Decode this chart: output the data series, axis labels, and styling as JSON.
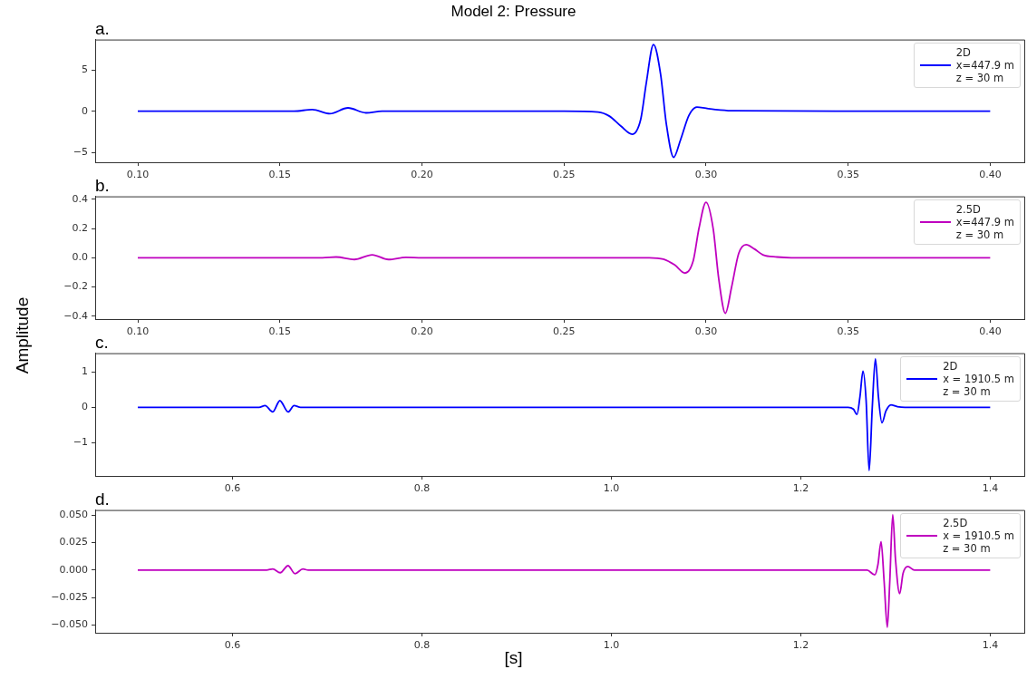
{
  "chart_data": [
    {
      "type": "line",
      "title": "Model 2: Pressure",
      "annotations": [
        "a."
      ],
      "legend": "top right",
      "xlim": [
        0.085,
        0.412
      ],
      "xticks": [
        {
          "value": 0.1,
          "label": "0.10"
        },
        {
          "value": 0.15,
          "label": "0.15"
        },
        {
          "value": 0.2,
          "label": "0.20"
        },
        {
          "value": 0.25,
          "label": "0.25"
        },
        {
          "value": 0.3,
          "label": "0.30"
        },
        {
          "value": 0.35,
          "label": "0.35"
        },
        {
          "value": 0.4,
          "label": "0.40"
        }
      ],
      "ylim": [
        -6.2,
        8.7
      ],
      "yticks": [
        {
          "value": -5,
          "label": "−5"
        },
        0,
        5
      ],
      "series": [
        {
          "name": "2D\nx=447.9 m\nz = 30 m",
          "color": "#0000ff",
          "x": [
            0.1,
            0.155,
            0.1614,
            0.1676,
            0.174,
            0.1803,
            0.186,
            0.2,
            0.25,
            0.262,
            0.266,
            0.27,
            0.274,
            0.277,
            0.279,
            0.2815,
            0.284,
            0.286,
            0.2886,
            0.291,
            0.294,
            0.2968,
            0.3,
            0.305,
            0.31,
            0.35,
            0.4
          ],
          "values": [
            0,
            0,
            0.2,
            -0.3,
            0.4,
            -0.2,
            0,
            0,
            0,
            -0.1,
            -0.6,
            -1.8,
            -2.8,
            -1.0,
            3.5,
            8.1,
            4.5,
            -1.5,
            -5.6,
            -3.5,
            -0.5,
            0.5,
            0.35,
            0.15,
            0.05,
            0,
            0
          ]
        }
      ]
    },
    {
      "type": "line",
      "annotations": [
        "b."
      ],
      "legend": "top right",
      "ylabel": "Amplitude",
      "xlim": [
        0.085,
        0.412
      ],
      "xticks": [
        {
          "value": 0.1,
          "label": "0.10"
        },
        {
          "value": 0.15,
          "label": "0.15"
        },
        {
          "value": 0.2,
          "label": "0.20"
        },
        {
          "value": 0.25,
          "label": "0.25"
        },
        {
          "value": 0.3,
          "label": "0.30"
        },
        {
          "value": 0.35,
          "label": "0.35"
        },
        {
          "value": 0.4,
          "label": "0.40"
        }
      ],
      "ylim": [
        -0.42,
        0.42
      ],
      "yticks": [
        {
          "value": -0.4,
          "label": "−0.4"
        },
        {
          "value": -0.2,
          "label": "−0.2"
        },
        {
          "value": 0,
          "label": "0.0"
        },
        0.2,
        0.4
      ],
      "series": [
        {
          "name": "2.5D\nx=447.9 m\nz = 30 m",
          "color": "#bf00bf",
          "x": [
            0.1,
            0.165,
            0.1698,
            0.1762,
            0.1825,
            0.1882,
            0.1944,
            0.2,
            0.28,
            0.285,
            0.289,
            0.2926,
            0.2955,
            0.2975,
            0.3,
            0.3025,
            0.3045,
            0.3068,
            0.309,
            0.3115,
            0.3141,
            0.317,
            0.32,
            0.325,
            0.33,
            0.4
          ],
          "values": [
            0,
            0,
            0.005,
            -0.012,
            0.02,
            -0.012,
            0.003,
            0,
            0,
            -0.01,
            -0.05,
            -0.105,
            -0.02,
            0.2,
            0.38,
            0.2,
            -0.15,
            -0.38,
            -0.2,
            0.03,
            0.09,
            0.06,
            0.02,
            0.005,
            0,
            0
          ]
        }
      ]
    },
    {
      "type": "line",
      "annotations": [
        "c."
      ],
      "legend": "top right",
      "xlim": [
        0.455,
        1.436
      ],
      "xticks": [
        0.6,
        0.8,
        {
          "value": 1,
          "label": "1.0"
        },
        1.2,
        1.4
      ],
      "ylim": [
        -1.95,
        1.54
      ],
      "yticks": [
        {
          "value": -1,
          "label": "−1"
        },
        0,
        1
      ],
      "series": [
        {
          "name": "2D\nx = 1910.5 m\nz = 30 m",
          "color": "#0000ff",
          "x": [
            0.5,
            0.628,
            0.6344,
            0.6425,
            0.65,
            0.6587,
            0.665,
            0.672,
            1.25,
            1.2555,
            1.2594,
            1.2625,
            1.2657,
            1.269,
            1.2722,
            1.2755,
            1.2788,
            1.282,
            1.2857,
            1.29,
            1.2952,
            1.302,
            1.31,
            1.4
          ],
          "values": [
            0,
            0,
            0.05,
            -0.13,
            0.19,
            -0.13,
            0.05,
            0,
            0,
            -0.05,
            -0.2,
            0.3,
            1.03,
            0.2,
            -1.8,
            0,
            1.38,
            0.3,
            -0.44,
            -0.1,
            0.07,
            0.02,
            0,
            0
          ]
        }
      ]
    },
    {
      "type": "line",
      "annotations": [
        "d."
      ],
      "legend": "top right",
      "xlabel": "[s]",
      "xlim": [
        0.455,
        1.436
      ],
      "xticks": [
        0.6,
        0.8,
        {
          "value": 1,
          "label": "1.0"
        },
        1.2,
        1.4
      ],
      "ylim": [
        -0.057,
        0.0546
      ],
      "yticks": [
        {
          "value": -0.05,
          "label": "−0.050"
        },
        {
          "value": -0.025,
          "label": "−0.025"
        },
        {
          "value": 0,
          "label": "0.000"
        },
        {
          "value": 0.025,
          "label": "0.025"
        },
        {
          "value": 0.05,
          "label": "0.050"
        }
      ],
      "series": [
        {
          "name": "2.5D\nx = 1910.5 m\nz = 30 m",
          "color": "#bf00bf",
          "x": [
            0.5,
            0.636,
            0.6425,
            0.6504,
            0.6586,
            0.666,
            0.6743,
            0.68,
            1.27,
            1.2781,
            1.2815,
            1.2848,
            1.288,
            1.2914,
            1.294,
            1.2971,
            1.3,
            1.3044,
            1.308,
            1.313,
            1.32,
            1.4
          ],
          "values": [
            0,
            0,
            0.001,
            -0.0024,
            0.004,
            -0.0033,
            0.001,
            0,
            0,
            -0.0044,
            0.005,
            0.026,
            -0.01,
            -0.052,
            -0.01,
            0.0505,
            0.01,
            -0.0214,
            -0.003,
            0.0033,
            0,
            0
          ]
        }
      ]
    }
  ]
}
